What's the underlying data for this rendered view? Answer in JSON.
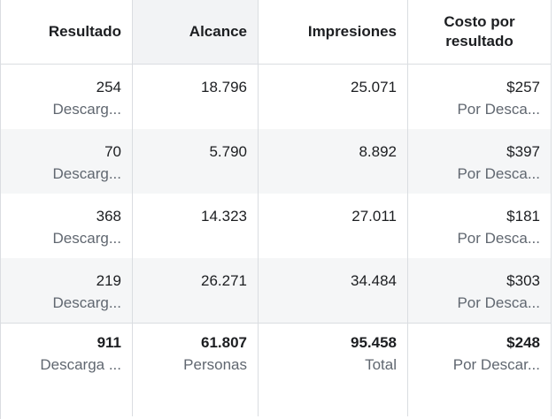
{
  "headers": [
    "Resultado",
    "Alcance",
    "Impresiones",
    "Costo por resultado"
  ],
  "rows": [
    {
      "resultado": "254",
      "resultado_sub": "Descarg...",
      "alcance": "18.796",
      "impresiones": "25.071",
      "costo": "$257",
      "costo_sub": "Por Desca..."
    },
    {
      "resultado": "70",
      "resultado_sub": "Descarg...",
      "alcance": "5.790",
      "impresiones": "8.892",
      "costo": "$397",
      "costo_sub": "Por Desca..."
    },
    {
      "resultado": "368",
      "resultado_sub": "Descarg...",
      "alcance": "14.323",
      "impresiones": "27.011",
      "costo": "$181",
      "costo_sub": "Por Desca..."
    },
    {
      "resultado": "219",
      "resultado_sub": "Descarg...",
      "alcance": "26.271",
      "impresiones": "34.484",
      "costo": "$303",
      "costo_sub": "Por Desca..."
    }
  ],
  "totals": {
    "resultado": "911",
    "resultado_sub": "Descarga ...",
    "alcance": "61.807",
    "alcance_sub": "Personas",
    "impresiones": "95.458",
    "impresiones_sub": "Total",
    "costo": "$248",
    "costo_sub": "Por Descar..."
  }
}
